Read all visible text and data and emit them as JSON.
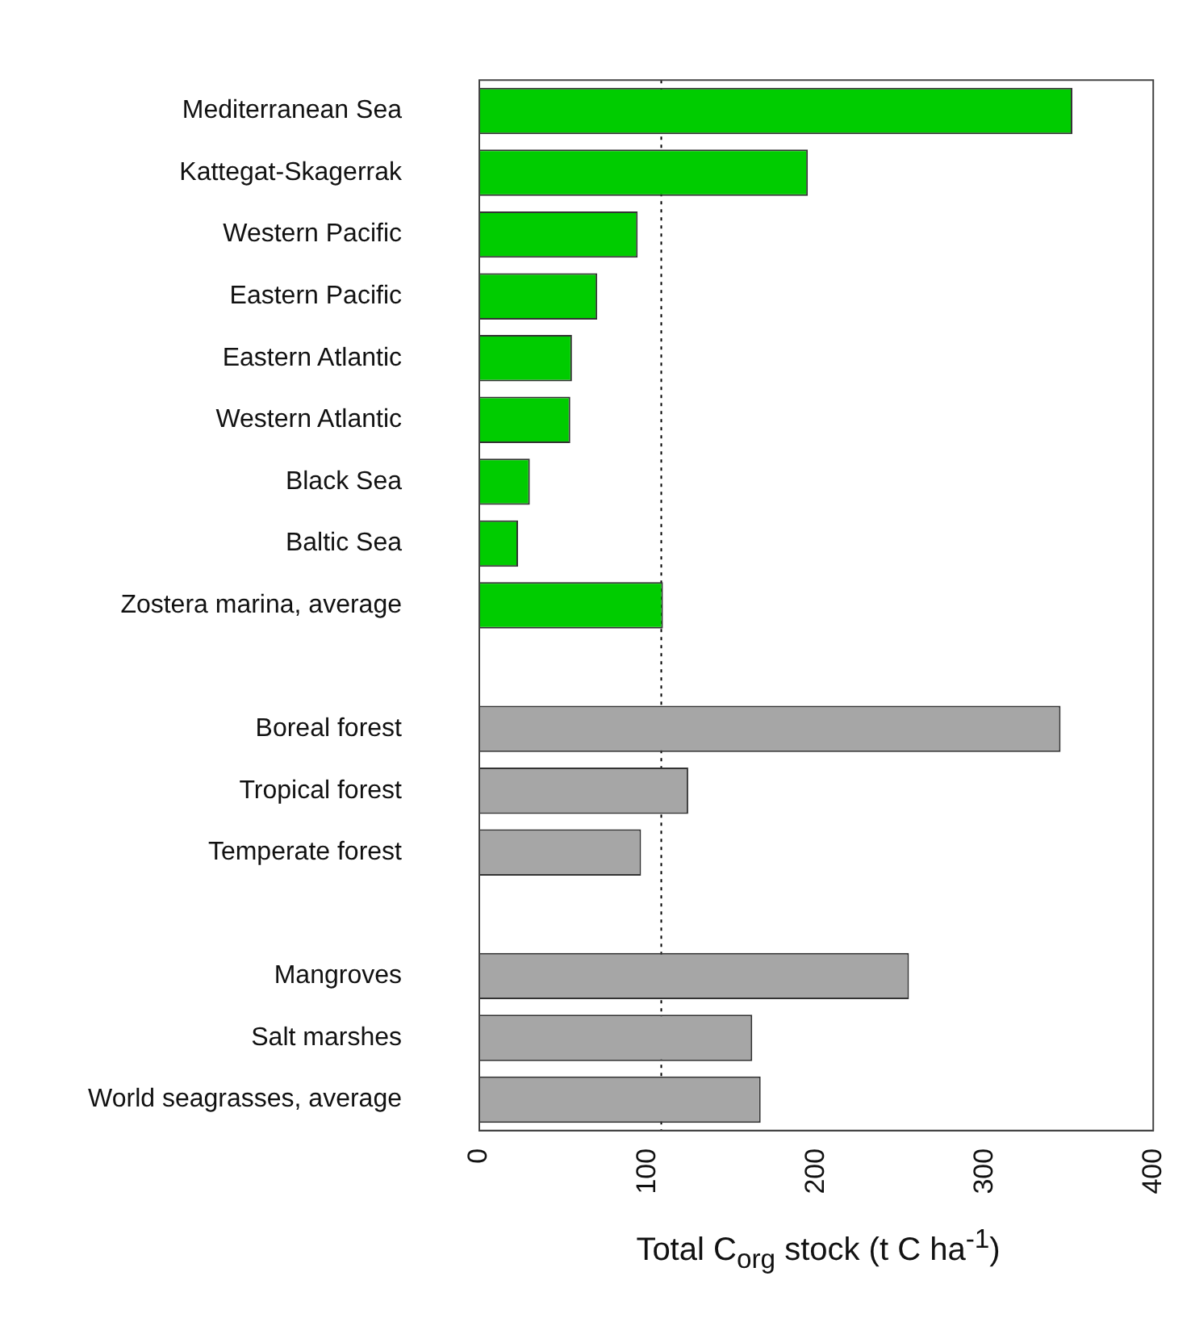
{
  "chart_data": {
    "type": "bar",
    "orientation": "horizontal",
    "xlabel": "Total C$_{org}$ stock (t C ha$^{-1}$)",
    "categories": [
      "Mediterranean Sea",
      "Kattegat-Skagerrak",
      "Western Pacific",
      "Eastern Pacific",
      "Eastern Atlantic",
      "Western Atlantic",
      "Black Sea",
      "Baltic Sea",
      "Zostera marina, average",
      null,
      "Boreal forest",
      "Tropical forest",
      "Temperate forest",
      null,
      "Mangroves",
      "Salt marshes",
      "World seagrasses, average"
    ],
    "values": [
      352,
      195,
      94,
      70,
      55,
      54,
      30,
      23,
      109,
      null,
      345,
      124,
      96,
      null,
      255,
      162,
      167
    ],
    "colors": [
      "#00cc00",
      "#00cc00",
      "#00cc00",
      "#00cc00",
      "#00cc00",
      "#00cc00",
      "#00cc00",
      "#00cc00",
      "#00cc00",
      null,
      "#a6a6a6",
      "#a6a6a6",
      "#a6a6a6",
      null,
      "#a6a6a6",
      "#a6a6a6",
      "#a6a6a6"
    ],
    "xlim": [
      0,
      400
    ],
    "xticks": [
      0,
      100,
      200,
      300,
      400
    ],
    "ref_lines": [
      {
        "axis": "x",
        "value": 108,
        "line_style": "dotted",
        "color": "#000000"
      }
    ],
    "grid": false,
    "legend": false
  }
}
